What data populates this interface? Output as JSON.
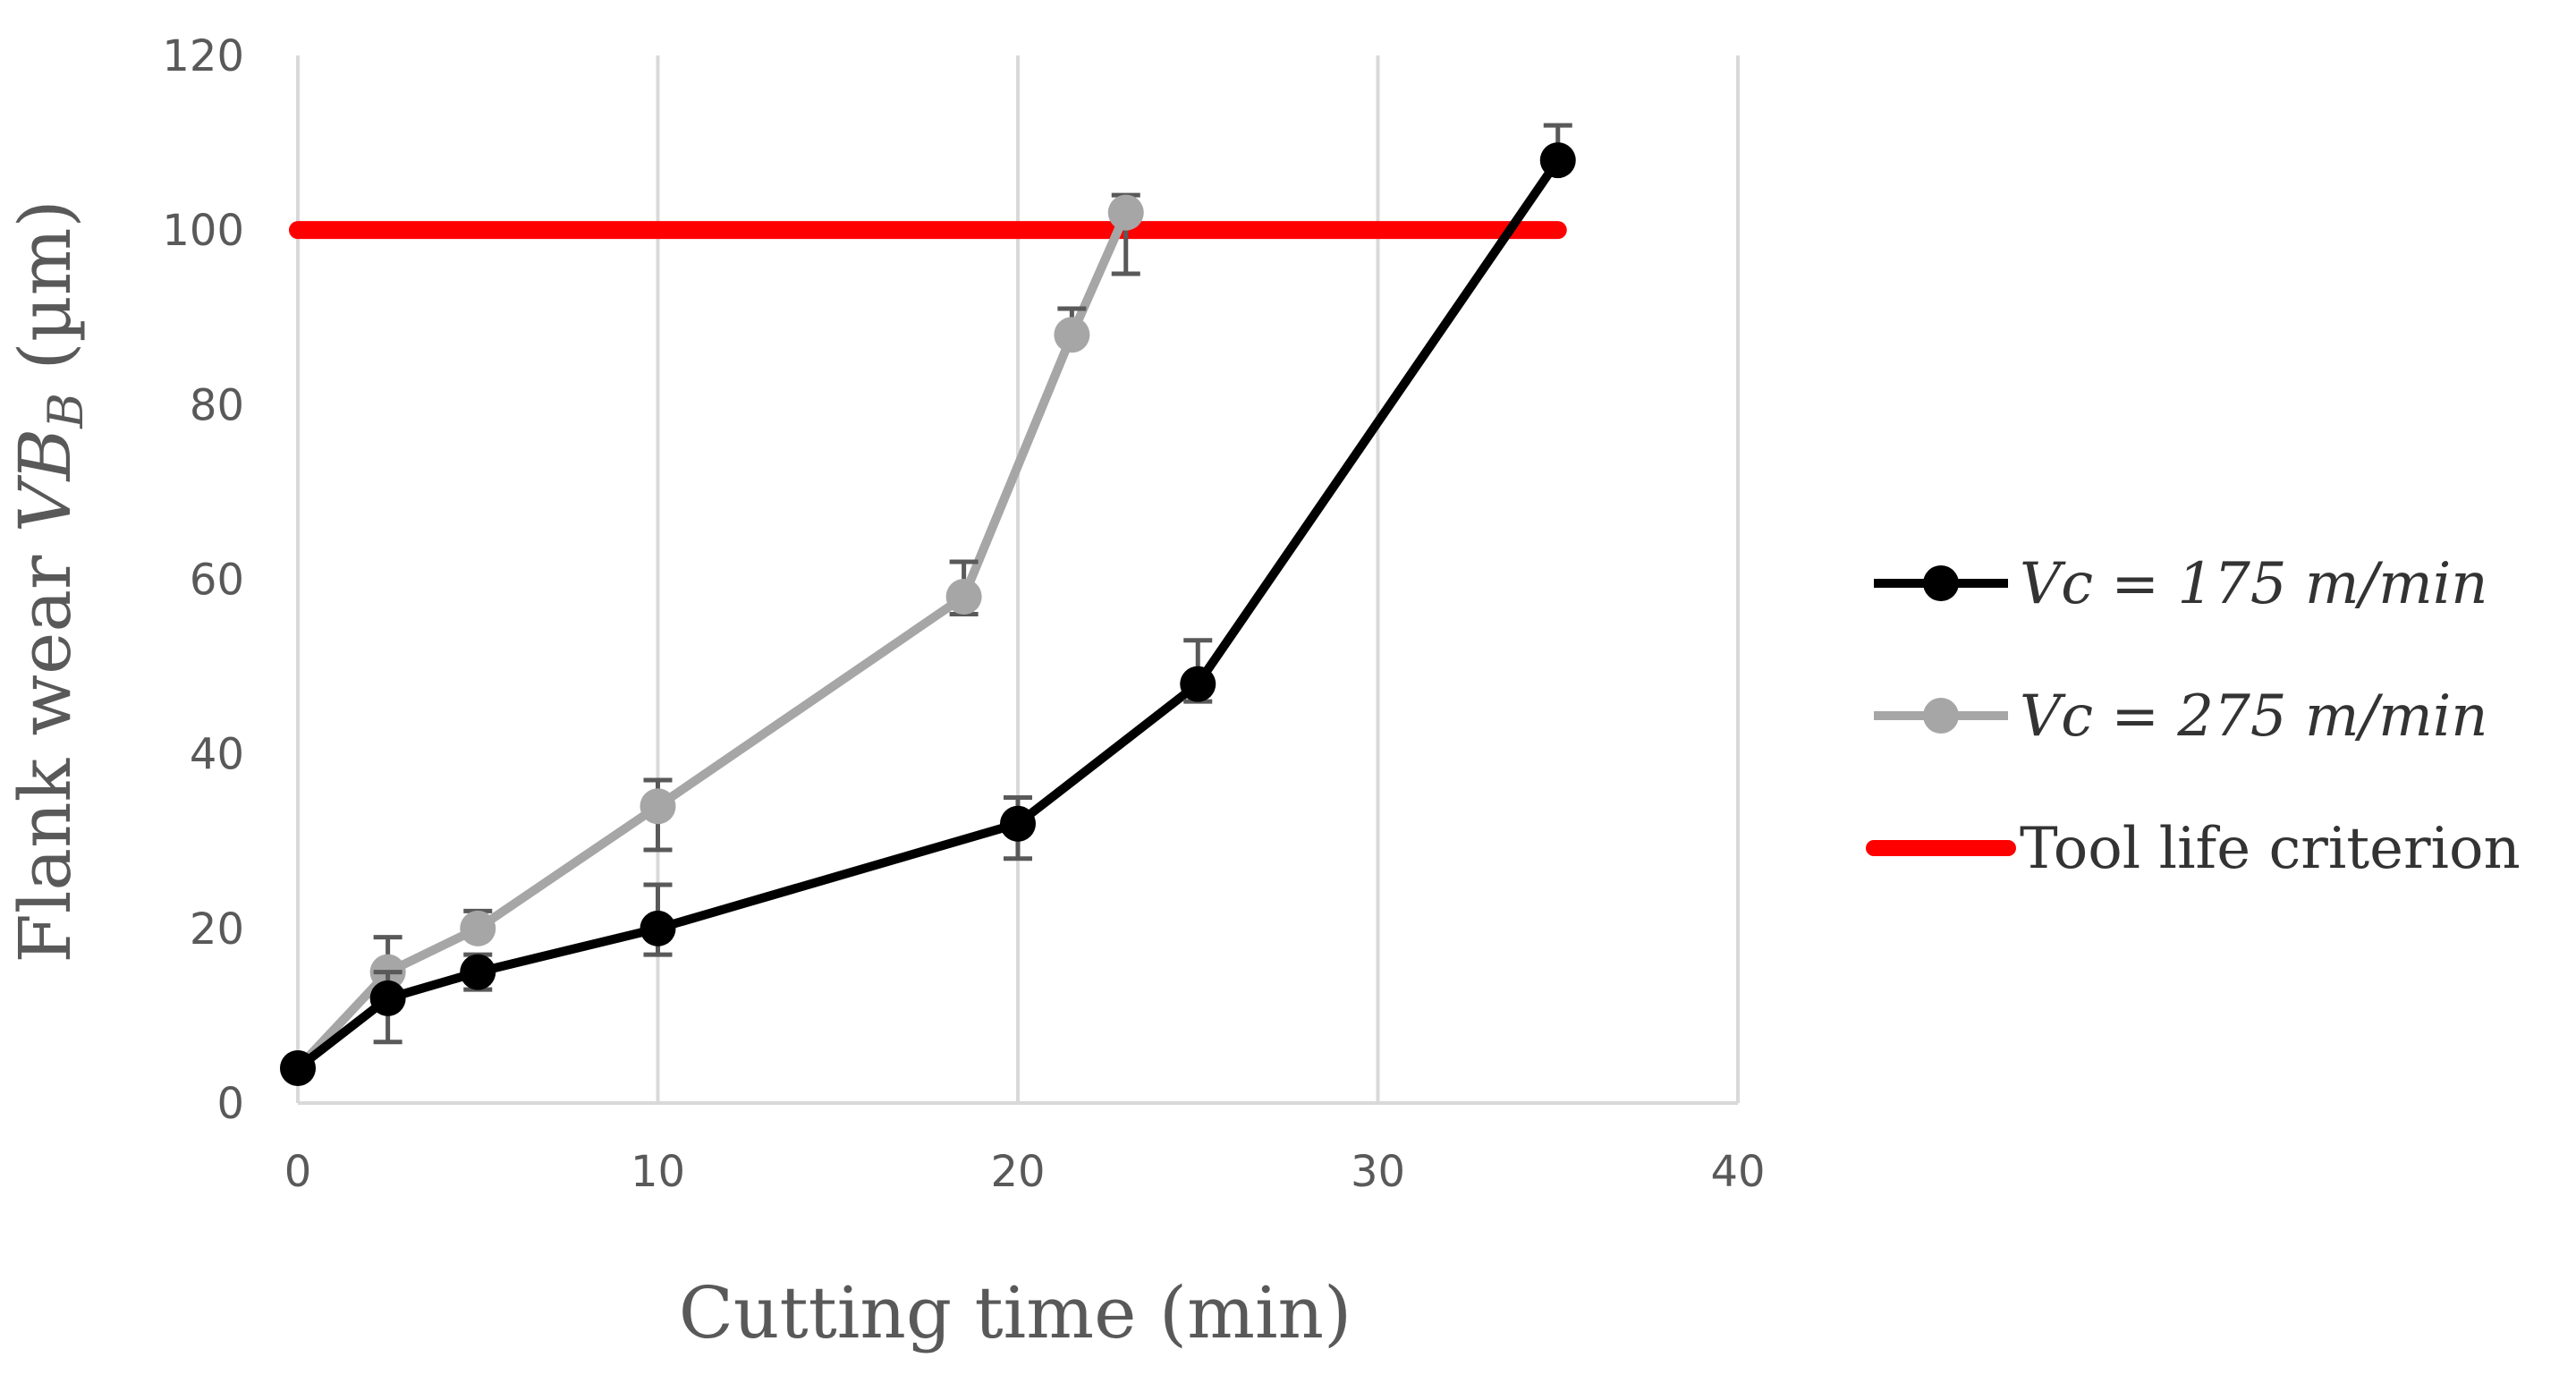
{
  "chart_data": {
    "type": "line",
    "title": "",
    "xlabel": "Cutting time (min)",
    "ylabel": "Flank wear VBB (µm)",
    "ylabel_parts": {
      "prefix": "Flank wear ",
      "var": "VB",
      "sub": "B",
      "suffix": " (µm)"
    },
    "xlim": [
      0,
      40
    ],
    "ylim": [
      0,
      120
    ],
    "xticks": [
      0,
      10,
      20,
      30,
      40
    ],
    "yticks": [
      0,
      20,
      40,
      60,
      80,
      100,
      120
    ],
    "grid": "vertical",
    "legend_position": "right",
    "series": [
      {
        "name": "Vc = 175 m/min",
        "color": "#000000",
        "marker": "circle",
        "x": [
          0,
          2.5,
          5,
          10,
          20,
          25,
          35
        ],
        "y": [
          4,
          12,
          15,
          20,
          32,
          48,
          108
        ],
        "err_low": [
          0,
          5,
          2,
          3,
          4,
          2,
          0
        ],
        "err_high": [
          0,
          3,
          2,
          5,
          3,
          5,
          4
        ]
      },
      {
        "name": "Vc = 275 m/min",
        "color": "#a6a6a6",
        "marker": "circle",
        "x": [
          0,
          2.5,
          5,
          10,
          18.5,
          21.5,
          23
        ],
        "y": [
          4,
          15,
          20,
          34,
          58,
          88,
          102
        ],
        "err_low": [
          0,
          3,
          0,
          5,
          2,
          0,
          7
        ],
        "err_high": [
          0,
          4,
          2,
          3,
          4,
          3,
          2
        ]
      },
      {
        "name": "Tool life criterion",
        "color": "#ff0000",
        "marker": "none",
        "x": [
          0,
          35
        ],
        "y": [
          100,
          100
        ]
      }
    ]
  }
}
